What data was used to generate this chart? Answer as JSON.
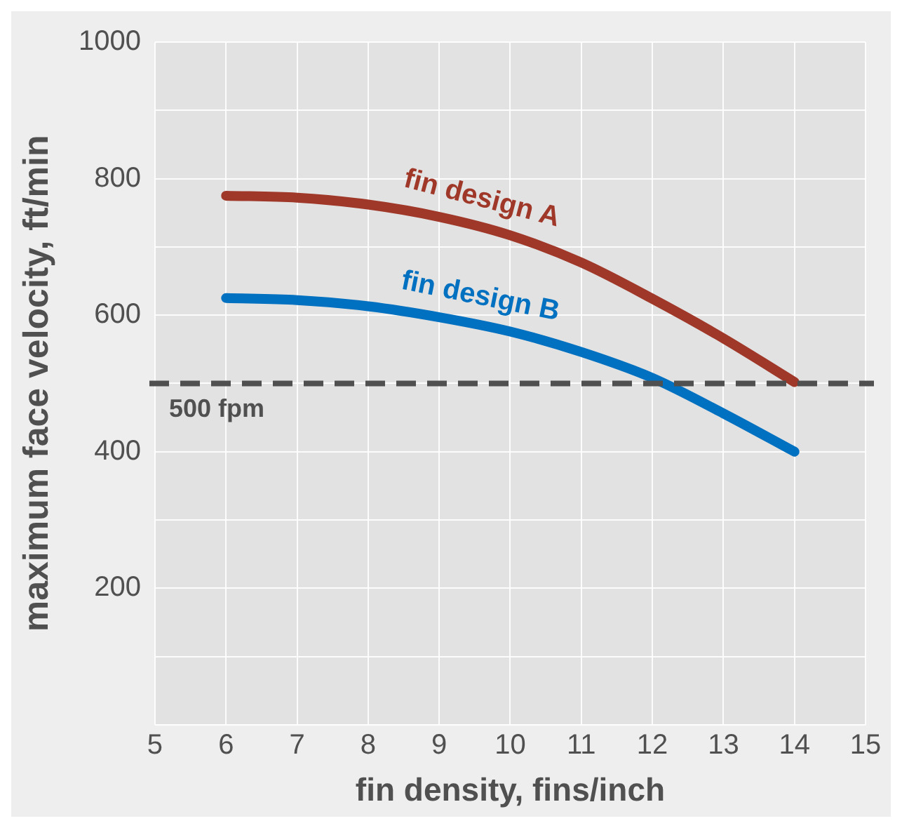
{
  "chart_data": {
    "type": "line",
    "xlabel": "fin density, fins/inch",
    "ylabel": "maximum face velocity, ft/min",
    "x": [
      6,
      7,
      8,
      9,
      10,
      11,
      12,
      13,
      14
    ],
    "series": [
      {
        "name": "fin design A",
        "color": "#a0382a",
        "values": [
          775,
          772,
          762,
          744,
          717,
          677,
          624,
          566,
          502
        ]
      },
      {
        "name": "fin design B",
        "color": "#0070c0",
        "values": [
          625,
          622,
          613,
          597,
          576,
          546,
          508,
          456,
          400
        ]
      }
    ],
    "xlim": [
      5,
      15
    ],
    "xticks": [
      5,
      6,
      7,
      8,
      9,
      10,
      11,
      12,
      13,
      14,
      15
    ],
    "ylim": [
      0,
      1000
    ],
    "yticks": [
      {
        "value": 0,
        "label": null
      },
      {
        "value": 100,
        "label": null
      },
      200,
      {
        "value": 300,
        "label": null
      },
      400,
      {
        "value": 500,
        "label": null
      },
      600,
      {
        "value": 700,
        "label": null
      },
      800,
      {
        "value": 900,
        "label": null
      },
      1000
    ],
    "ref_lines": [
      {
        "axis": "y",
        "value": 500,
        "label": "500 fpm",
        "color": "#505050",
        "line_style": "dashed"
      }
    ],
    "grid": true,
    "legend": false,
    "marker": "none",
    "line_style": "solid"
  }
}
